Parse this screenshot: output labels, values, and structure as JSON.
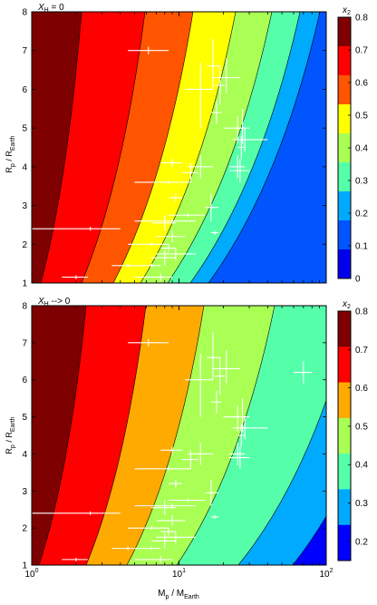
{
  "chart_data": [
    {
      "type": "contour",
      "panel_label": "X_H = 0",
      "panel_label_parts": {
        "main": "X",
        "sub": "H",
        "rest": " = 0"
      },
      "ylabel_parts": {
        "a": "R",
        "a_sub": "p",
        "b": " / R",
        "b_sub": "Earth"
      },
      "xlim": [
        1,
        100
      ],
      "ylim": [
        1,
        8
      ],
      "xscale": "log",
      "y_ticks": [
        "1",
        "2",
        "3",
        "4",
        "5",
        "6",
        "7",
        "8"
      ],
      "colorbar": {
        "label": "x",
        "label_sub": "2",
        "range": [
          0,
          0.8
        ],
        "ticks": [
          "0",
          "0.1",
          "0.2",
          "0.3",
          "0.4",
          "0.5",
          "0.6",
          "0.7",
          "0.8"
        ]
      },
      "contour_levels": [
        {
          "color": "#7f0000",
          "label": "0.7-0.8"
        },
        {
          "color": "#ff0000",
          "label": "0.6-0.7"
        },
        {
          "color": "#ff5500",
          "label": "0.5-0.6"
        },
        {
          "color": "#ffff00",
          "label": "0.4-0.5"
        },
        {
          "color": "#aaff55",
          "label": "0.3-0.4"
        },
        {
          "color": "#55ffaa",
          "label": "0.2-0.3"
        },
        {
          "color": "#00aaff",
          "label": "0.1-0.2"
        },
        {
          "color": "#0055ff",
          "label": "0.0-0.1"
        },
        {
          "color": "#0000ee",
          "label": "< 0"
        }
      ],
      "planets": [
        {
          "m": 6.2,
          "r": 7.0,
          "mlo": 4.5,
          "mhi": 8.5,
          "rlo": 6.9,
          "rhi": 7.1
        },
        {
          "m": 17.0,
          "r": 6.6,
          "mlo": 15.5,
          "mhi": 19.0,
          "rlo": 6.0,
          "rhi": 7.3
        },
        {
          "m": 21.0,
          "r": 6.3,
          "mlo": 17.0,
          "mhi": 26.0,
          "rlo": 5.9,
          "rhi": 6.8
        },
        {
          "m": 14.0,
          "r": 6.0,
          "mlo": 11.0,
          "mhi": 17.0,
          "rlo": 5.0,
          "rhi": 6.7
        },
        {
          "m": 19.0,
          "r": 6.1,
          "mlo": 17.5,
          "mhi": 20.5,
          "rlo": 5.6,
          "rhi": 6.6
        },
        {
          "m": 18.0,
          "r": 5.4,
          "mlo": 16.5,
          "mhi": 19.5,
          "rlo": 5.1,
          "rhi": 5.7
        },
        {
          "m": 25.0,
          "r": 5.0,
          "mlo": 20.0,
          "mhi": 28.0,
          "rlo": 4.6,
          "rhi": 5.3
        },
        {
          "m": 27.0,
          "r": 5.0,
          "mlo": 24.0,
          "mhi": 30.0,
          "rlo": 4.6,
          "rhi": 5.5
        },
        {
          "m": 28.0,
          "r": 4.7,
          "mlo": 23.0,
          "mhi": 40.0,
          "rlo": 4.4,
          "rhi": 5.0
        },
        {
          "m": 26.5,
          "r": 4.5,
          "mlo": 25.0,
          "mhi": 28.0,
          "rlo": 4.2,
          "rhi": 4.8
        },
        {
          "m": 14.0,
          "r": 4.0,
          "mlo": 11.5,
          "mhi": 17.0,
          "rlo": 3.7,
          "rhi": 4.3
        },
        {
          "m": 26.0,
          "r": 3.9,
          "mlo": 22.0,
          "mhi": 30.0,
          "rlo": 3.6,
          "rhi": 4.2
        },
        {
          "m": 25.0,
          "r": 4.0,
          "mlo": 22.0,
          "mhi": 28.0,
          "rlo": 3.7,
          "rhi": 4.3
        },
        {
          "m": 9.0,
          "r": 4.1,
          "mlo": 7.5,
          "mhi": 10.5,
          "rlo": 4.0,
          "rhi": 4.2
        },
        {
          "m": 12.0,
          "r": 3.85,
          "mlo": 10.5,
          "mhi": 13.5,
          "rlo": 3.6,
          "rhi": 4.1
        },
        {
          "m": 8.5,
          "r": 3.6,
          "mlo": 5.0,
          "mhi": 12.0,
          "rlo": 3.55,
          "rhi": 3.65
        },
        {
          "m": 9.5,
          "r": 3.2,
          "mlo": 8.5,
          "mhi": 10.5,
          "rlo": 3.1,
          "rhi": 3.3
        },
        {
          "m": 16.5,
          "r": 2.95,
          "mlo": 15.0,
          "mhi": 18.5,
          "rlo": 2.6,
          "rhi": 3.3
        },
        {
          "m": 11.5,
          "r": 2.75,
          "mlo": 8.5,
          "mhi": 15.0,
          "rlo": 2.7,
          "rhi": 2.8
        },
        {
          "m": 9.0,
          "r": 2.6,
          "mlo": 5.0,
          "mhi": 13.0,
          "rlo": 2.55,
          "rhi": 2.65
        },
        {
          "m": 8.0,
          "r": 2.55,
          "mlo": 6.5,
          "mhi": 9.5,
          "rlo": 2.35,
          "rhi": 2.75
        },
        {
          "m": 2.5,
          "r": 2.4,
          "mlo": 1.0,
          "mhi": 4.0,
          "rlo": 2.35,
          "rhi": 2.45
        },
        {
          "m": 9.0,
          "r": 2.2,
          "mlo": 7.0,
          "mhi": 11.0,
          "rlo": 2.05,
          "rhi": 2.35
        },
        {
          "m": 17.5,
          "r": 2.3,
          "mlo": 16.5,
          "mhi": 18.5,
          "rlo": 2.25,
          "rhi": 2.35
        },
        {
          "m": 6.5,
          "r": 2.0,
          "mlo": 4.5,
          "mhi": 8.5,
          "rlo": 1.95,
          "rhi": 2.05
        },
        {
          "m": 8.5,
          "r": 1.9,
          "mlo": 7.5,
          "mhi": 9.5,
          "rlo": 1.8,
          "rhi": 2.0
        },
        {
          "m": 9.5,
          "r": 1.75,
          "mlo": 7.0,
          "mhi": 13.0,
          "rlo": 1.6,
          "rhi": 1.9
        },
        {
          "m": 8.0,
          "r": 1.65,
          "mlo": 6.5,
          "mhi": 9.5,
          "rlo": 1.45,
          "rhi": 1.85
        },
        {
          "m": 4.5,
          "r": 1.45,
          "mlo": 3.5,
          "mhi": 5.5,
          "rlo": 1.4,
          "rhi": 1.5
        },
        {
          "m": 6.5,
          "r": 1.45,
          "mlo": 5.5,
          "mhi": 7.5,
          "rlo": 1.4,
          "rhi": 1.5
        },
        {
          "m": 7.5,
          "r": 1.15,
          "mlo": 5.0,
          "mhi": 9.0,
          "rlo": 1.05,
          "rhi": 1.25
        },
        {
          "m": 2.0,
          "r": 1.15,
          "mlo": 1.6,
          "mhi": 2.4,
          "rlo": 1.1,
          "rhi": 1.2
        }
      ]
    },
    {
      "type": "contour",
      "panel_label": "X_H --> 0",
      "panel_label_parts": {
        "main": "X",
        "sub": "H",
        "rest": " --> 0"
      },
      "ylabel_parts": {
        "a": "R",
        "a_sub": "p",
        "b": " / R",
        "b_sub": "Earth"
      },
      "xlabel_parts": {
        "a": "M",
        "a_sub": "p",
        "b": " / M",
        "b_sub": "Earth"
      },
      "xlim": [
        1,
        100
      ],
      "ylim": [
        1,
        8
      ],
      "xscale": "log",
      "x_ticks": [
        {
          "base": "10",
          "exp": "0"
        },
        {
          "base": "10",
          "exp": "1"
        },
        {
          "base": "10",
          "exp": "2"
        }
      ],
      "y_ticks": [
        "1",
        "2",
        "3",
        "4",
        "5",
        "6",
        "7",
        "8"
      ],
      "colorbar": {
        "label": "x",
        "label_sub": "2",
        "range": [
          0.15,
          0.8
        ],
        "ticks": [
          "0.2",
          "0.3",
          "0.4",
          "0.5",
          "0.6",
          "0.7",
          "0.8"
        ]
      },
      "contour_levels": [
        {
          "color": "#7f0000",
          "label": "0.7-0.8"
        },
        {
          "color": "#ff0000",
          "label": "0.6-0.7"
        },
        {
          "color": "#ffaa00",
          "label": "0.5-0.6"
        },
        {
          "color": "#aaff55",
          "label": "0.4-0.5"
        },
        {
          "color": "#55ffaa",
          "label": "0.3-0.4"
        },
        {
          "color": "#00aaff",
          "label": "0.2-0.3"
        },
        {
          "color": "#0000ff",
          "label": "< 0.2"
        }
      ],
      "planets": [
        {
          "m": 6.2,
          "r": 7.0,
          "mlo": 4.5,
          "mhi": 8.5,
          "rlo": 6.9,
          "rhi": 7.1
        },
        {
          "m": 70.0,
          "r": 6.2,
          "mlo": 60.0,
          "mhi": 80.0,
          "rlo": 5.9,
          "rhi": 6.5
        },
        {
          "m": 17.0,
          "r": 6.6,
          "mlo": 15.5,
          "mhi": 19.0,
          "rlo": 6.0,
          "rhi": 7.3
        },
        {
          "m": 21.0,
          "r": 6.3,
          "mlo": 17.0,
          "mhi": 26.0,
          "rlo": 5.9,
          "rhi": 6.8
        },
        {
          "m": 14.0,
          "r": 6.0,
          "mlo": 11.0,
          "mhi": 17.0,
          "rlo": 5.0,
          "rhi": 6.7
        },
        {
          "m": 19.0,
          "r": 6.1,
          "mlo": 17.5,
          "mhi": 20.5,
          "rlo": 5.6,
          "rhi": 6.6
        },
        {
          "m": 18.0,
          "r": 5.4,
          "mlo": 16.5,
          "mhi": 19.5,
          "rlo": 5.1,
          "rhi": 5.7
        },
        {
          "m": 25.0,
          "r": 5.0,
          "mlo": 20.0,
          "mhi": 28.0,
          "rlo": 4.6,
          "rhi": 5.3
        },
        {
          "m": 27.0,
          "r": 5.0,
          "mlo": 24.0,
          "mhi": 30.0,
          "rlo": 4.6,
          "rhi": 5.5
        },
        {
          "m": 28.0,
          "r": 4.7,
          "mlo": 23.0,
          "mhi": 40.0,
          "rlo": 4.4,
          "rhi": 5.0
        },
        {
          "m": 26.5,
          "r": 4.5,
          "mlo": 25.0,
          "mhi": 28.0,
          "rlo": 4.2,
          "rhi": 4.8
        },
        {
          "m": 14.0,
          "r": 4.0,
          "mlo": 11.5,
          "mhi": 17.0,
          "rlo": 3.7,
          "rhi": 4.3
        },
        {
          "m": 26.0,
          "r": 3.9,
          "mlo": 22.0,
          "mhi": 30.0,
          "rlo": 3.6,
          "rhi": 4.2
        },
        {
          "m": 25.0,
          "r": 4.0,
          "mlo": 22.0,
          "mhi": 28.0,
          "rlo": 3.7,
          "rhi": 4.3
        },
        {
          "m": 9.0,
          "r": 4.1,
          "mlo": 7.5,
          "mhi": 10.5,
          "rlo": 4.0,
          "rhi": 4.2
        },
        {
          "m": 12.0,
          "r": 3.85,
          "mlo": 10.5,
          "mhi": 13.5,
          "rlo": 3.6,
          "rhi": 4.1
        },
        {
          "m": 8.5,
          "r": 3.6,
          "mlo": 5.0,
          "mhi": 12.0,
          "rlo": 3.55,
          "rhi": 3.65
        },
        {
          "m": 9.5,
          "r": 3.2,
          "mlo": 8.5,
          "mhi": 10.5,
          "rlo": 3.1,
          "rhi": 3.3
        },
        {
          "m": 16.5,
          "r": 2.95,
          "mlo": 15.0,
          "mhi": 18.5,
          "rlo": 2.6,
          "rhi": 3.3
        },
        {
          "m": 11.5,
          "r": 2.75,
          "mlo": 8.5,
          "mhi": 15.0,
          "rlo": 2.7,
          "rhi": 2.8
        },
        {
          "m": 9.0,
          "r": 2.6,
          "mlo": 5.0,
          "mhi": 13.0,
          "rlo": 2.55,
          "rhi": 2.65
        },
        {
          "m": 8.0,
          "r": 2.55,
          "mlo": 6.5,
          "mhi": 9.5,
          "rlo": 2.35,
          "rhi": 2.75
        },
        {
          "m": 2.5,
          "r": 2.4,
          "mlo": 1.0,
          "mhi": 4.0,
          "rlo": 2.35,
          "rhi": 2.45
        },
        {
          "m": 9.0,
          "r": 2.2,
          "mlo": 7.0,
          "mhi": 11.0,
          "rlo": 2.05,
          "rhi": 2.35
        },
        {
          "m": 17.5,
          "r": 2.3,
          "mlo": 16.5,
          "mhi": 18.5,
          "rlo": 2.25,
          "rhi": 2.35
        },
        {
          "m": 6.5,
          "r": 2.0,
          "mlo": 4.5,
          "mhi": 8.5,
          "rlo": 1.95,
          "rhi": 2.05
        },
        {
          "m": 8.5,
          "r": 1.9,
          "mlo": 7.5,
          "mhi": 9.5,
          "rlo": 1.8,
          "rhi": 2.0
        },
        {
          "m": 9.5,
          "r": 1.75,
          "mlo": 7.0,
          "mhi": 13.0,
          "rlo": 1.6,
          "rhi": 1.9
        },
        {
          "m": 8.0,
          "r": 1.65,
          "mlo": 6.5,
          "mhi": 9.5,
          "rlo": 1.45,
          "rhi": 1.85
        },
        {
          "m": 4.5,
          "r": 1.45,
          "mlo": 3.5,
          "mhi": 5.5,
          "rlo": 1.4,
          "rhi": 1.5
        },
        {
          "m": 6.5,
          "r": 1.45,
          "mlo": 5.5,
          "mhi": 7.5,
          "rlo": 1.4,
          "rhi": 1.5
        },
        {
          "m": 7.5,
          "r": 1.15,
          "mlo": 5.0,
          "mhi": 9.0,
          "rlo": 1.05,
          "rhi": 1.25
        },
        {
          "m": 2.0,
          "r": 1.15,
          "mlo": 1.6,
          "mhi": 2.4,
          "rlo": 1.1,
          "rhi": 1.2
        }
      ]
    }
  ]
}
